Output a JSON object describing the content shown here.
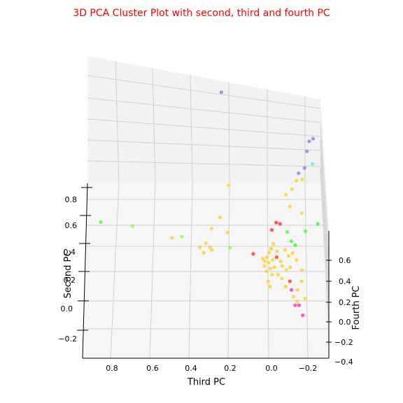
{
  "chart_data": {
    "type": "scatter",
    "projection": "3d",
    "title": "3D PCA Cluster Plot with second, third and fourth PC",
    "xlabel": "Third PC",
    "ylabel": "Second PC",
    "zlabel": "Fourth PC",
    "title_color": "#ff0000",
    "grid": true,
    "x_ticks": [
      "0.8",
      "0.6",
      "0.4",
      "0.2",
      "0.0",
      "−0.2"
    ],
    "y_ticks": [
      "0.8",
      "0.6",
      "0.4",
      "0.2",
      "0.0",
      "−0.2"
    ],
    "z_ticks": [
      "0.6",
      "0.4",
      "0.2",
      "0.0",
      "−0.2",
      "−0.4"
    ],
    "points": [
      {
        "third": 0.86,
        "second": 0.63,
        "fourth": 0.15,
        "color": "#33ff33"
      },
      {
        "third": 0.7,
        "second": 0.6,
        "fourth": 0.15,
        "color": "#88ff33"
      },
      {
        "third": 0.21,
        "second": 0.43,
        "fourth": 0.2,
        "color": "#88ff33"
      },
      {
        "third": 0.45,
        "second": 0.52,
        "fourth": 0.15,
        "color": "#88ff33"
      },
      {
        "third": 0.5,
        "second": 0.51,
        "fourth": 0.15,
        "color": "#ffcc22"
      },
      {
        "third": 0.3,
        "second": 0.58,
        "fourth": 0.15,
        "color": "#ffcc22"
      },
      {
        "third": 0.22,
        "second": 0.55,
        "fourth": 0.15,
        "color": "#ffcc22"
      },
      {
        "third": 0.33,
        "second": 0.47,
        "fourth": 0.15,
        "color": "#ffcc22"
      },
      {
        "third": 0.36,
        "second": 0.44,
        "fourth": 0.15,
        "color": "#ffcc22"
      },
      {
        "third": 0.31,
        "second": 0.44,
        "fourth": 0.15,
        "color": "#ffcc22"
      },
      {
        "third": 0.34,
        "second": 0.4,
        "fourth": 0.15,
        "color": "#ffcc22"
      },
      {
        "third": 0.3,
        "second": 0.42,
        "fourth": 0.15,
        "color": "#ffcc22"
      },
      {
        "third": 0.26,
        "second": 0.66,
        "fourth": 0.2,
        "color": "#ffcc22"
      },
      {
        "third": 0.22,
        "second": 0.89,
        "fourth": 0.3,
        "color": "#ffcc22"
      },
      {
        "third": 0.26,
        "second": 1.58,
        "fourth": 0.4,
        "color": "#8877ee"
      },
      {
        "third": -0.04,
        "second": 0.6,
        "fourth": 0.3,
        "color": "#ff2222"
      },
      {
        "third": -0.08,
        "second": 0.55,
        "fourth": 0.2,
        "color": "#33ff33"
      },
      {
        "third": -0.17,
        "second": 0.55,
        "fourth": 0.25,
        "color": "#33ff33"
      },
      {
        "third": -0.23,
        "second": 0.6,
        "fourth": 0.3,
        "color": "#22ff22"
      },
      {
        "third": -0.12,
        "second": 0.45,
        "fourth": 0.2,
        "color": "#22ff22"
      },
      {
        "third": -0.1,
        "second": 0.48,
        "fourth": 0.2,
        "color": "#33ff33"
      },
      {
        "third": 0.09,
        "second": 0.39,
        "fourth": 0.15,
        "color": "#ff2222"
      },
      {
        "third": -0.07,
        "second": 0.82,
        "fourth": 0.3,
        "color": "#ffcc22"
      },
      {
        "third": -0.1,
        "second": 0.86,
        "fourth": 0.3,
        "color": "#ffcc22"
      },
      {
        "third": -0.12,
        "second": 0.92,
        "fourth": 0.35,
        "color": "#ffcc22"
      },
      {
        "third": -0.09,
        "second": 0.73,
        "fourth": 0.3,
        "color": "#ffcc22"
      },
      {
        "third": -0.13,
        "second": 0.97,
        "fourth": 0.4,
        "color": "#8877ee"
      },
      {
        "third": -0.16,
        "second": 1.01,
        "fourth": 0.4,
        "color": "#8877ee"
      },
      {
        "third": -0.17,
        "second": 1.13,
        "fourth": 0.45,
        "color": "#8877ee"
      },
      {
        "third": -0.18,
        "second": 1.2,
        "fourth": 0.5,
        "color": "#8877ee"
      },
      {
        "third": -0.2,
        "second": 1.22,
        "fourth": 0.5,
        "color": "#8877ee"
      },
      {
        "third": -0.2,
        "second": 1.04,
        "fourth": 0.4,
        "color": "#33ffcc"
      },
      {
        "third": -0.15,
        "second": 0.93,
        "fourth": 0.35,
        "color": "#ffcc22"
      },
      {
        "third": -0.15,
        "second": 0.68,
        "fourth": 0.3,
        "color": "#ffcc22"
      },
      {
        "third": -0.02,
        "second": 0.61,
        "fourth": 0.3,
        "color": "#ff2222"
      },
      {
        "third": 0.0,
        "second": 0.56,
        "fourth": 0.25,
        "color": "#ff2222"
      },
      {
        "third": -0.01,
        "second": 0.46,
        "fourth": 0.2,
        "color": "#ffcc22"
      },
      {
        "third": 0.0,
        "second": 0.43,
        "fourth": 0.15,
        "color": "#ffcc22"
      },
      {
        "third": 0.01,
        "second": 0.4,
        "fourth": 0.15,
        "color": "#ffcc22"
      },
      {
        "third": 0.02,
        "second": 0.37,
        "fourth": 0.1,
        "color": "#ffcc22"
      },
      {
        "third": -0.01,
        "second": 0.35,
        "fourth": 0.1,
        "color": "#ffcc22"
      },
      {
        "third": 0.01,
        "second": 0.33,
        "fourth": 0.1,
        "color": "#ffcc22"
      },
      {
        "third": 0.03,
        "second": 0.31,
        "fourth": 0.05,
        "color": "#ffcc22"
      },
      {
        "third": 0.0,
        "second": 0.29,
        "fourth": 0.05,
        "color": "#ffcc22"
      },
      {
        "third": -0.02,
        "second": 0.3,
        "fourth": 0.05,
        "color": "#ffcc22"
      },
      {
        "third": 0.02,
        "second": 0.27,
        "fourth": 0.05,
        "color": "#ffcc22"
      },
      {
        "third": -0.01,
        "second": 0.25,
        "fourth": 0.0,
        "color": "#ffcc22"
      },
      {
        "third": 0.01,
        "second": 0.2,
        "fourth": 0.0,
        "color": "#ffcc22"
      },
      {
        "third": 0.0,
        "second": 0.16,
        "fourth": 0.0,
        "color": "#ffcc22"
      },
      {
        "third": -0.03,
        "second": 0.37,
        "fourth": 0.1,
        "color": "#ff2222"
      },
      {
        "third": -0.05,
        "second": 0.34,
        "fourth": 0.1,
        "color": "#ffcc22"
      },
      {
        "third": -0.07,
        "second": 0.42,
        "fourth": 0.15,
        "color": "#ffcc22"
      },
      {
        "third": -0.09,
        "second": 0.38,
        "fourth": 0.1,
        "color": "#ffcc22"
      },
      {
        "third": -0.11,
        "second": 0.4,
        "fourth": 0.1,
        "color": "#ffcc22"
      },
      {
        "third": -0.06,
        "second": 0.31,
        "fourth": 0.05,
        "color": "#ffcc22"
      },
      {
        "third": -0.08,
        "second": 0.28,
        "fourth": 0.05,
        "color": "#ffcc22"
      },
      {
        "third": -0.04,
        "second": 0.25,
        "fourth": 0.0,
        "color": "#ffcc22"
      },
      {
        "third": -0.1,
        "second": 0.3,
        "fourth": 0.05,
        "color": "#ffcc22"
      },
      {
        "third": -0.13,
        "second": 0.35,
        "fourth": 0.1,
        "color": "#ffcc22"
      },
      {
        "third": -0.06,
        "second": 0.22,
        "fourth": 0.0,
        "color": "#ffcc22"
      },
      {
        "third": -0.08,
        "second": 0.16,
        "fourth": 0.0,
        "color": "#ffcc22"
      },
      {
        "third": -0.1,
        "second": 0.2,
        "fourth": 0.0,
        "color": "#ff2222"
      },
      {
        "third": -0.11,
        "second": 0.14,
        "fourth": -0.05,
        "color": "#ff22aa"
      },
      {
        "third": -0.14,
        "second": 0.14,
        "fourth": -0.05,
        "color": "#ffcc22"
      },
      {
        "third": -0.12,
        "second": 0.09,
        "fourth": -0.05,
        "color": "#ffcc22"
      },
      {
        "third": -0.16,
        "second": 0.28,
        "fourth": 0.05,
        "color": "#ffcc22"
      },
      {
        "third": -0.13,
        "second": 0.03,
        "fourth": -0.1,
        "color": "#ff22aa"
      },
      {
        "third": -0.15,
        "second": 0.03,
        "fourth": -0.1,
        "color": "#ff22aa"
      },
      {
        "third": -0.14,
        "second": 0.06,
        "fourth": -0.1,
        "color": "#ffcc22"
      },
      {
        "third": -0.18,
        "second": 0.08,
        "fourth": -0.1,
        "color": "#ffcc22"
      },
      {
        "third": -0.16,
        "second": 0.2,
        "fourth": 0.0,
        "color": "#ffcc22"
      },
      {
        "third": -0.17,
        "second": -0.04,
        "fourth": -0.15,
        "color": "#ff22aa"
      },
      {
        "third": 0.03,
        "second": 0.34,
        "fourth": 0.1,
        "color": "#ffcc22"
      },
      {
        "third": 0.04,
        "second": 0.36,
        "fourth": 0.1,
        "color": "#ffcc22"
      },
      {
        "third": -0.03,
        "second": 0.41,
        "fourth": 0.15,
        "color": "#ffcc22"
      }
    ]
  }
}
